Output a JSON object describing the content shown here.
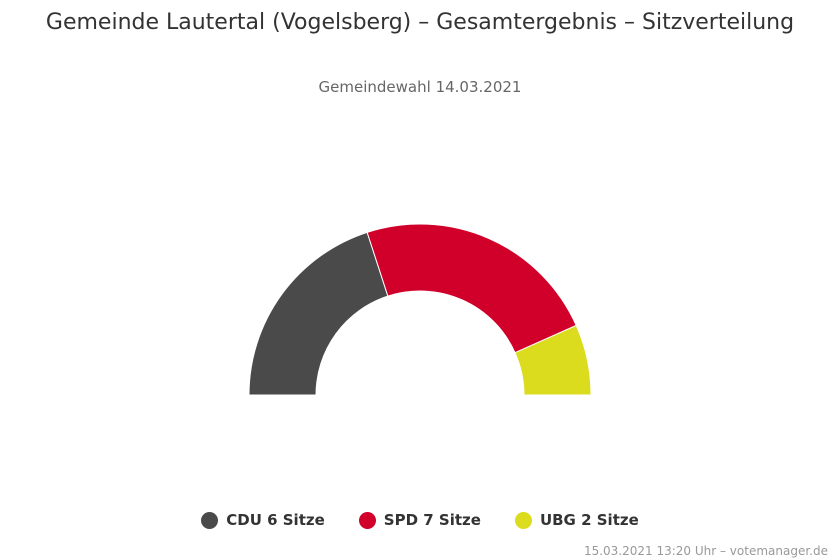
{
  "title": "Gemeinde Lautertal (Vogelsberg) – Gesamtergebnis – Sitzverteilung",
  "subtitle": "Gemeindewahl 14.03.2021",
  "credits": "15.03.2021 13:20 Uhr – votemanager.de",
  "chart_data": {
    "type": "pie",
    "variant": "semicircle-parliament",
    "title": "Gemeinde Lautertal (Vogelsberg) – Gesamtergebnis – Sitzverteilung",
    "subtitle": "Gemeindewahl 14.03.2021",
    "categories": [
      "CDU",
      "SPD",
      "UBG"
    ],
    "values": [
      6,
      7,
      2
    ],
    "colors": [
      "#4a4a4a",
      "#d0002a",
      "#dcdc1e"
    ],
    "legend_labels": [
      "CDU 6 Sitze",
      "SPD 7 Sitze",
      "UBG 2 Sitze"
    ],
    "legend_position": "bottom"
  }
}
